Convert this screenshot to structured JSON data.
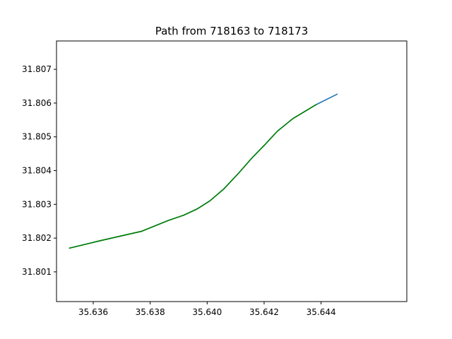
{
  "chart_data": {
    "type": "line",
    "title": "Path from 718163 to 718173",
    "xlabel": "",
    "ylabel": "",
    "xlim": [
      35.63471,
      35.64701
    ],
    "ylim": [
      31.80012,
      31.80784
    ],
    "xticks": [
      "35.636",
      "35.638",
      "35.640",
      "35.642",
      "35.644"
    ],
    "yticks": [
      "31.801",
      "31.802",
      "31.803",
      "31.804",
      "31.805",
      "31.806",
      "31.807"
    ],
    "grid": false,
    "series": [
      {
        "color": "#1f77b4",
        "points": [
          [
            35.63515,
            31.8017
          ],
          [
            35.63623,
            31.80192
          ],
          [
            35.63769,
            31.8022
          ],
          [
            35.63863,
            31.80252
          ],
          [
            35.63918,
            31.80268
          ],
          [
            35.63964,
            31.80286
          ],
          [
            35.64009,
            31.8031
          ],
          [
            35.64059,
            31.80346
          ],
          [
            35.6411,
            31.80392
          ],
          [
            35.64159,
            31.80439
          ],
          [
            35.64204,
            31.80478
          ],
          [
            35.64247,
            31.80517
          ],
          [
            35.64301,
            31.80554
          ],
          [
            35.64384,
            31.80596
          ],
          [
            35.64458,
            31.80627
          ]
        ]
      },
      {
        "color": "#008000",
        "points": [
          [
            35.63515,
            31.8017
          ],
          [
            35.63623,
            31.80192
          ],
          [
            35.63769,
            31.8022
          ],
          [
            35.63863,
            31.80252
          ],
          [
            35.63918,
            31.80268
          ],
          [
            35.63964,
            31.80286
          ],
          [
            35.64009,
            31.8031
          ],
          [
            35.64059,
            31.80346
          ],
          [
            35.6411,
            31.80392
          ],
          [
            35.64159,
            31.80439
          ],
          [
            35.64204,
            31.80478
          ],
          [
            35.64247,
            31.80517
          ],
          [
            35.64301,
            31.80554
          ],
          [
            35.64384,
            31.80596
          ]
        ]
      }
    ]
  }
}
